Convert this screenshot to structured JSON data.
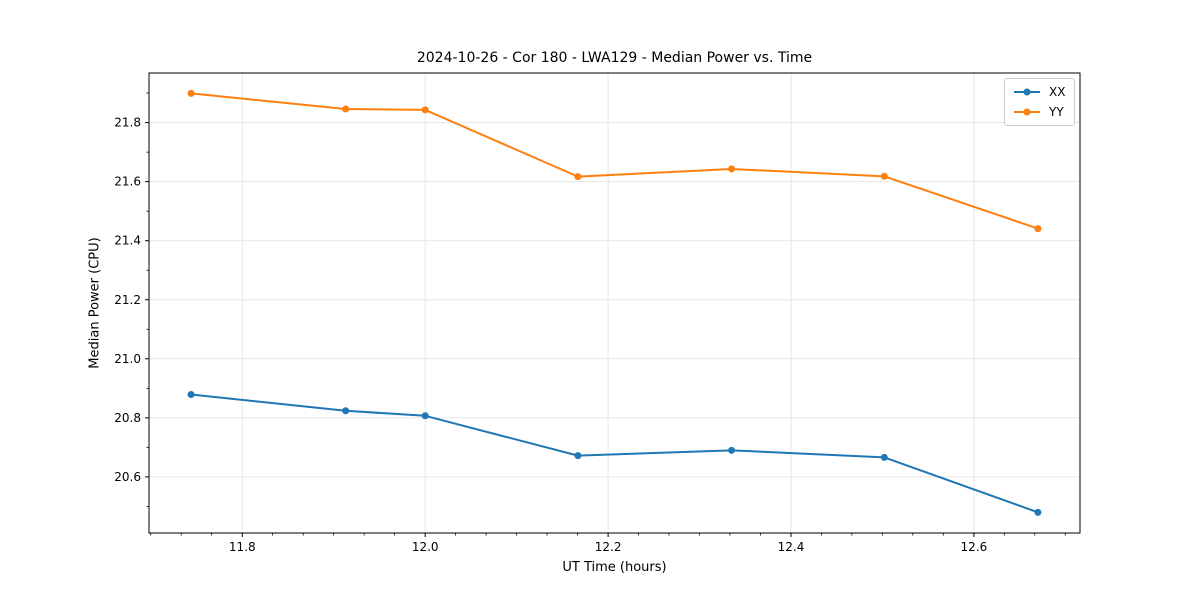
{
  "chart_data": {
    "type": "line",
    "title": "2024-10-26 - Cor 180 - LWA129 - Median Power vs. Time",
    "xlabel": "UT Time (hours)",
    "ylabel": "Median Power (CPU)",
    "x": [
      11.744,
      11.913,
      12.0,
      12.167,
      12.335,
      12.502,
      12.67
    ],
    "series": [
      {
        "name": "XX",
        "color": "#1f77b4",
        "values": [
          20.879,
          20.824,
          20.807,
          20.672,
          20.69,
          20.666,
          20.48
        ]
      },
      {
        "name": "YY",
        "color": "#ff7f0e",
        "values": [
          21.899,
          21.846,
          21.843,
          21.617,
          21.643,
          21.618,
          21.441
        ]
      }
    ],
    "xlim": [
      11.698,
      12.716
    ],
    "ylim": [
      20.41,
      21.968
    ],
    "xticks": [
      11.8,
      12.0,
      12.2,
      12.4,
      12.6
    ],
    "xtick_labels": [
      "11.8",
      "12.0",
      "12.2",
      "12.4",
      "12.6"
    ],
    "yticks": [
      20.6,
      20.8,
      21.0,
      21.2,
      21.4,
      21.6,
      21.8
    ],
    "ytick_labels": [
      "20.6",
      "20.8",
      "21.0",
      "21.2",
      "21.4",
      "21.6",
      "21.8"
    ],
    "x_minor_step": 0.033333,
    "y_minor_step": 0.1,
    "grid": true,
    "grid_color": "#e6e6e6",
    "axis_color": "#000000",
    "legend": {
      "position": "upper-right",
      "entries": [
        "XX",
        "YY"
      ]
    },
    "marker": "circle",
    "marker_radius": 3.5,
    "line_width": 2
  }
}
